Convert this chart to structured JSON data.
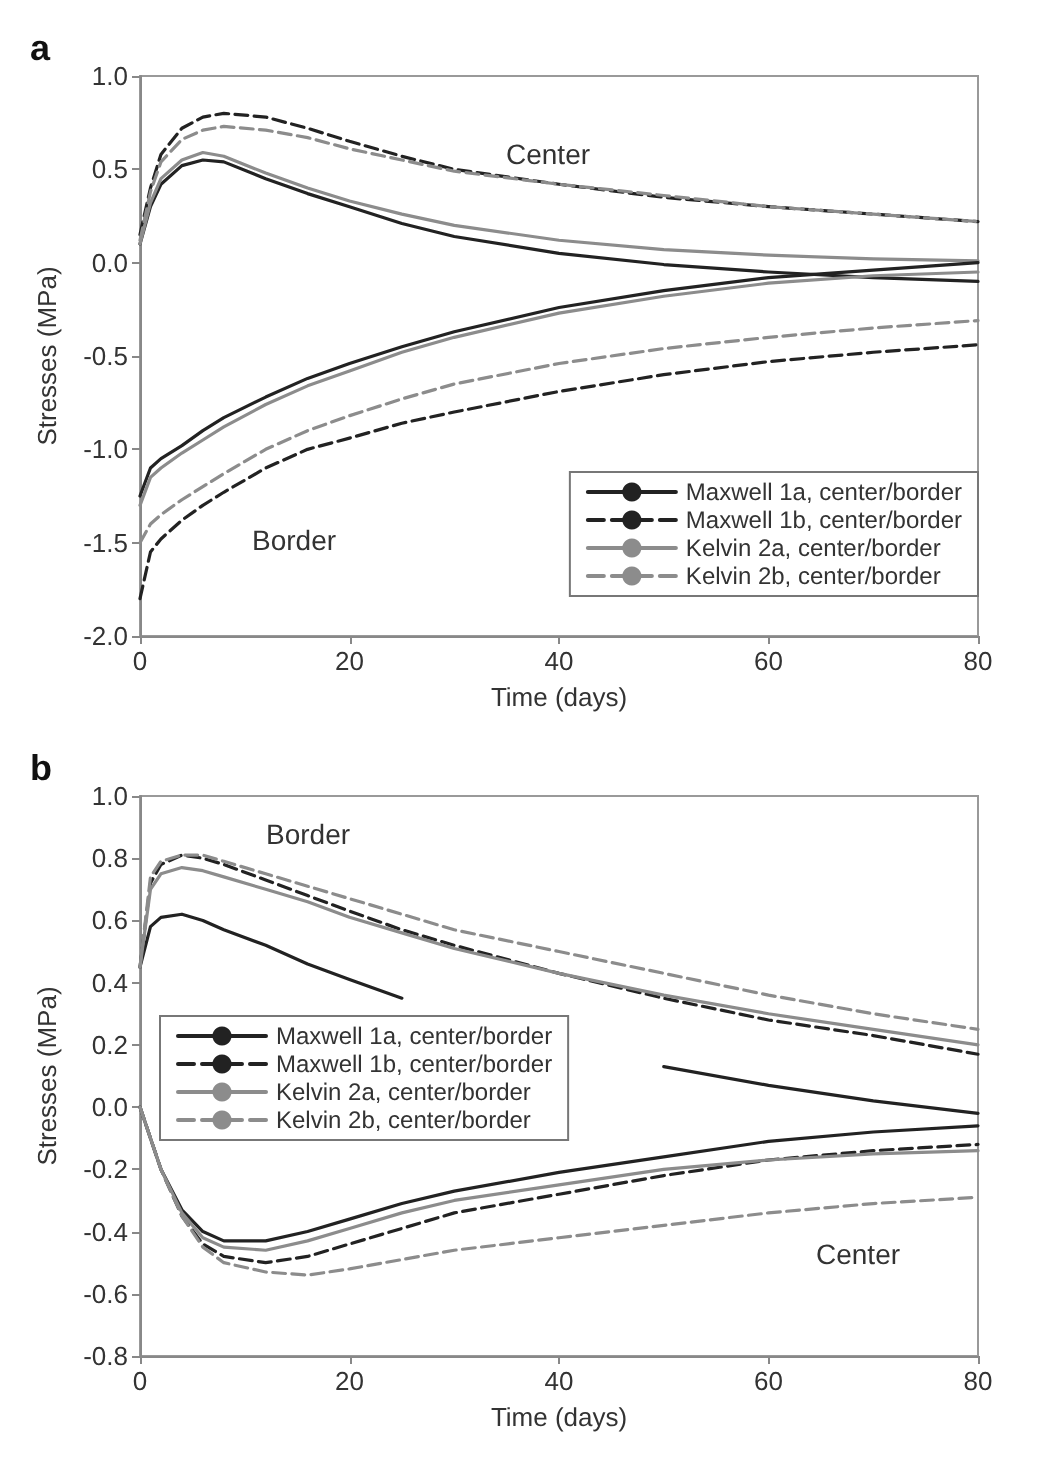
{
  "chart_data": [
    {
      "type": "line",
      "title": "a",
      "xlabel": "Time (days)",
      "ylabel": "Stresses (MPa)",
      "x": [
        0,
        1,
        2,
        4,
        6,
        8,
        12,
        16,
        20,
        25,
        30,
        40,
        50,
        60,
        70,
        80
      ],
      "xlim": [
        0,
        80
      ],
      "xticks": [
        0,
        20,
        40,
        60,
        80
      ],
      "ylim": [
        -2,
        1
      ],
      "yticks": [
        {
          "value": -2,
          "label": "-2.0"
        },
        {
          "value": -1.5,
          "label": "-1.5"
        },
        {
          "value": -1,
          "label": "-1.0"
        },
        {
          "value": -0.5,
          "label": "-0.5"
        },
        {
          "value": 0,
          "label": "0.0"
        },
        {
          "value": 0.5,
          "label": "0.5"
        },
        {
          "value": 1,
          "label": "1.0"
        }
      ],
      "grid": false,
      "legend": "bottom right",
      "marker": "none",
      "annotations": [
        "Center",
        "Border"
      ],
      "series": [
        {
          "name": "Maxwell 1a, center/border",
          "color": "#222222",
          "line_style": "solid",
          "values": [
            0.1,
            0.3,
            0.42,
            0.52,
            0.55,
            0.54,
            0.45,
            0.37,
            0.3,
            0.21,
            0.14,
            0.05,
            -0.01,
            -0.05,
            -0.08,
            -0.1
          ]
        },
        {
          "name": "Maxwell 1b, center/border",
          "color": "#222222",
          "line_style": "dashed",
          "values": [
            0.15,
            0.4,
            0.58,
            0.72,
            0.78,
            0.8,
            0.78,
            0.72,
            0.65,
            0.57,
            0.5,
            0.42,
            0.35,
            0.3,
            0.26,
            0.22
          ]
        },
        {
          "name": "Kelvin 2a, center/border",
          "color": "#8c8c8c",
          "line_style": "solid",
          "values": [
            0.1,
            0.32,
            0.45,
            0.55,
            0.59,
            0.57,
            0.48,
            0.4,
            0.33,
            0.26,
            0.2,
            0.12,
            0.07,
            0.04,
            0.02,
            0.01
          ]
        },
        {
          "name": "Kelvin 2b, center/border",
          "color": "#8c8c8c",
          "line_style": "dashed",
          "values": [
            0.12,
            0.38,
            0.54,
            0.66,
            0.71,
            0.73,
            0.71,
            0.67,
            0.61,
            0.55,
            0.49,
            0.42,
            0.36,
            0.3,
            0.26,
            0.22
          ]
        },
        {
          "color": "#222222",
          "line_style": "solid",
          "values": [
            -1.25,
            -1.1,
            -1.05,
            -0.98,
            -0.9,
            -0.83,
            -0.72,
            -0.62,
            -0.54,
            -0.45,
            -0.37,
            -0.24,
            -0.15,
            -0.08,
            -0.04,
            0.0
          ]
        },
        {
          "color": "#222222",
          "line_style": "dashed",
          "values": [
            -1.8,
            -1.55,
            -1.48,
            -1.38,
            -1.3,
            -1.23,
            -1.1,
            -1.0,
            -0.94,
            -0.86,
            -0.8,
            -0.69,
            -0.6,
            -0.53,
            -0.48,
            -0.44
          ]
        },
        {
          "color": "#8c8c8c",
          "line_style": "solid",
          "values": [
            -1.3,
            -1.15,
            -1.1,
            -1.02,
            -0.95,
            -0.88,
            -0.76,
            -0.66,
            -0.58,
            -0.48,
            -0.4,
            -0.27,
            -0.18,
            -0.11,
            -0.07,
            -0.05
          ]
        },
        {
          "color": "#8c8c8c",
          "line_style": "dashed",
          "values": [
            -1.5,
            -1.4,
            -1.35,
            -1.27,
            -1.2,
            -1.13,
            -1.0,
            -0.9,
            -0.82,
            -0.73,
            -0.65,
            -0.54,
            -0.46,
            -0.4,
            -0.35,
            -0.31
          ]
        }
      ]
    },
    {
      "type": "line",
      "title": "b",
      "xlabel": "Time (days)",
      "ylabel": "Stresses (MPa)",
      "x": [
        0,
        1,
        2,
        4,
        6,
        8,
        12,
        16,
        20,
        25,
        30,
        40,
        50,
        60,
        70,
        80
      ],
      "xlim": [
        0,
        80
      ],
      "xticks": [
        0,
        20,
        40,
        60,
        80
      ],
      "ylim": [
        -0.8,
        1
      ],
      "yticks": [
        {
          "value": -0.8,
          "label": "-0.8"
        },
        {
          "value": -0.6,
          "label": "-0.6"
        },
        {
          "value": -0.4,
          "label": "-0.4"
        },
        {
          "value": -0.2,
          "label": "-0.2"
        },
        {
          "value": 0,
          "label": "0.0"
        },
        {
          "value": 0.2,
          "label": "0.2"
        },
        {
          "value": 0.4,
          "label": "0.4"
        },
        {
          "value": 0.6,
          "label": "0.6"
        },
        {
          "value": 0.8,
          "label": "0.8"
        },
        {
          "value": 1,
          "label": "1.0"
        }
      ],
      "grid": false,
      "legend": "left",
      "marker": "none",
      "annotations": [
        "Border",
        "Center"
      ],
      "series": [
        {
          "name": "Maxwell 1a, center/border",
          "color": "#222222",
          "line_style": "solid",
          "values": [
            0,
            -0.1,
            -0.2,
            -0.33,
            -0.4,
            -0.43,
            -0.43,
            -0.4,
            -0.36,
            -0.31,
            -0.27,
            -0.21,
            -0.16,
            -0.11,
            -0.08,
            -0.06
          ]
        },
        {
          "name": "Maxwell 1b, center/border",
          "color": "#222222",
          "line_style": "dashed",
          "values": [
            0,
            -0.1,
            -0.2,
            -0.35,
            -0.44,
            -0.48,
            -0.5,
            -0.48,
            -0.44,
            -0.39,
            -0.34,
            -0.28,
            -0.22,
            -0.17,
            -0.14,
            -0.12
          ]
        },
        {
          "name": "Kelvin 2a, center/border",
          "color": "#8c8c8c",
          "line_style": "solid",
          "values": [
            0,
            -0.1,
            -0.2,
            -0.34,
            -0.42,
            -0.45,
            -0.46,
            -0.43,
            -0.39,
            -0.34,
            -0.3,
            -0.25,
            -0.2,
            -0.17,
            -0.15,
            -0.14
          ]
        },
        {
          "name": "Kelvin 2b, center/border",
          "color": "#8c8c8c",
          "line_style": "dashed",
          "values": [
            0,
            -0.1,
            -0.2,
            -0.35,
            -0.45,
            -0.5,
            -0.53,
            -0.54,
            -0.52,
            -0.49,
            -0.46,
            -0.42,
            -0.38,
            -0.34,
            -0.31,
            -0.29
          ]
        },
        {
          "color": "#222222",
          "line_style": "solid",
          "values": [
            0.45,
            0.58,
            0.61,
            0.62,
            0.6,
            0.57,
            0.52,
            0.46,
            0.41,
            0.35,
            null,
            null,
            0.13,
            0.07,
            0.02,
            -0.02
          ]
        },
        {
          "color": "#222222",
          "line_style": "dashed",
          "values": [
            0.45,
            0.72,
            0.78,
            0.81,
            0.8,
            0.78,
            0.73,
            0.68,
            0.63,
            0.57,
            0.52,
            0.43,
            0.35,
            0.28,
            0.23,
            0.17
          ]
        },
        {
          "color": "#8c8c8c",
          "line_style": "solid",
          "values": [
            0.45,
            0.7,
            0.75,
            0.77,
            0.76,
            0.74,
            0.7,
            0.66,
            0.61,
            0.56,
            0.51,
            0.43,
            0.36,
            0.3,
            0.25,
            0.2
          ]
        },
        {
          "color": "#8c8c8c",
          "line_style": "dashed",
          "values": [
            0.45,
            0.74,
            0.79,
            0.81,
            0.81,
            0.79,
            0.75,
            0.71,
            0.67,
            0.62,
            0.57,
            0.5,
            0.43,
            0.36,
            0.3,
            0.25
          ]
        }
      ]
    }
  ]
}
